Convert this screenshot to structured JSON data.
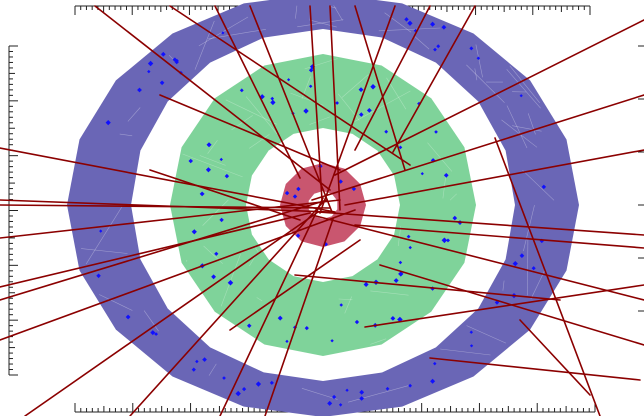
{
  "colors": {
    "background": "#ffffff",
    "outer_ring": "#6a66b6",
    "middle_ring": "#7fd39a",
    "inner_core": "#c9566f",
    "center_hole": "#ffffff",
    "tracks": "#8b0000",
    "hits": "#1010ff",
    "ticks": "#222222",
    "mesh": "#ffffff"
  },
  "rings": [
    {
      "id": "outer",
      "label": "",
      "sides": 20
    },
    {
      "id": "middle",
      "label": "",
      "sides": 16
    },
    {
      "id": "inner",
      "label": "",
      "sides": 12
    }
  ],
  "track_count": 36,
  "hit_count": 110,
  "axes": {
    "top_ticks": 90,
    "bottom_ticks": 90,
    "left_ticks": 60,
    "right_ticks": 6,
    "ticklabels": []
  }
}
